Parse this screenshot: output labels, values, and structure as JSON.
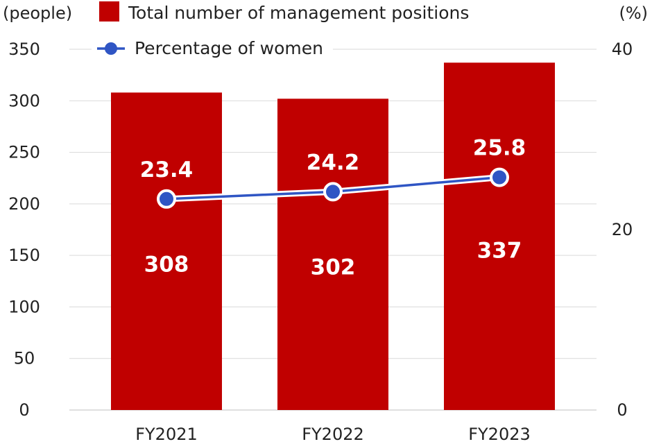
{
  "chart_data": {
    "type": "bar",
    "categories": [
      "FY2021",
      "FY2022",
      "FY2023"
    ],
    "series": [
      {
        "name": "Total number of management positions",
        "type": "bar",
        "axis": "left",
        "values": [
          308,
          302,
          337
        ],
        "color": "#c00000"
      },
      {
        "name": "Percentage of women",
        "type": "line",
        "axis": "right",
        "values": [
          23.4,
          24.2,
          25.8
        ],
        "color": "#2f55c4"
      }
    ],
    "y_left": {
      "label": "(people)",
      "range": [
        0,
        350
      ],
      "ticks": [
        0,
        50,
        100,
        150,
        200,
        250,
        300,
        350
      ]
    },
    "y_right": {
      "label": "(%)",
      "range": [
        0,
        40
      ],
      "ticks": [
        0,
        20,
        40
      ]
    },
    "grid": true,
    "legend_position": "top-center"
  }
}
